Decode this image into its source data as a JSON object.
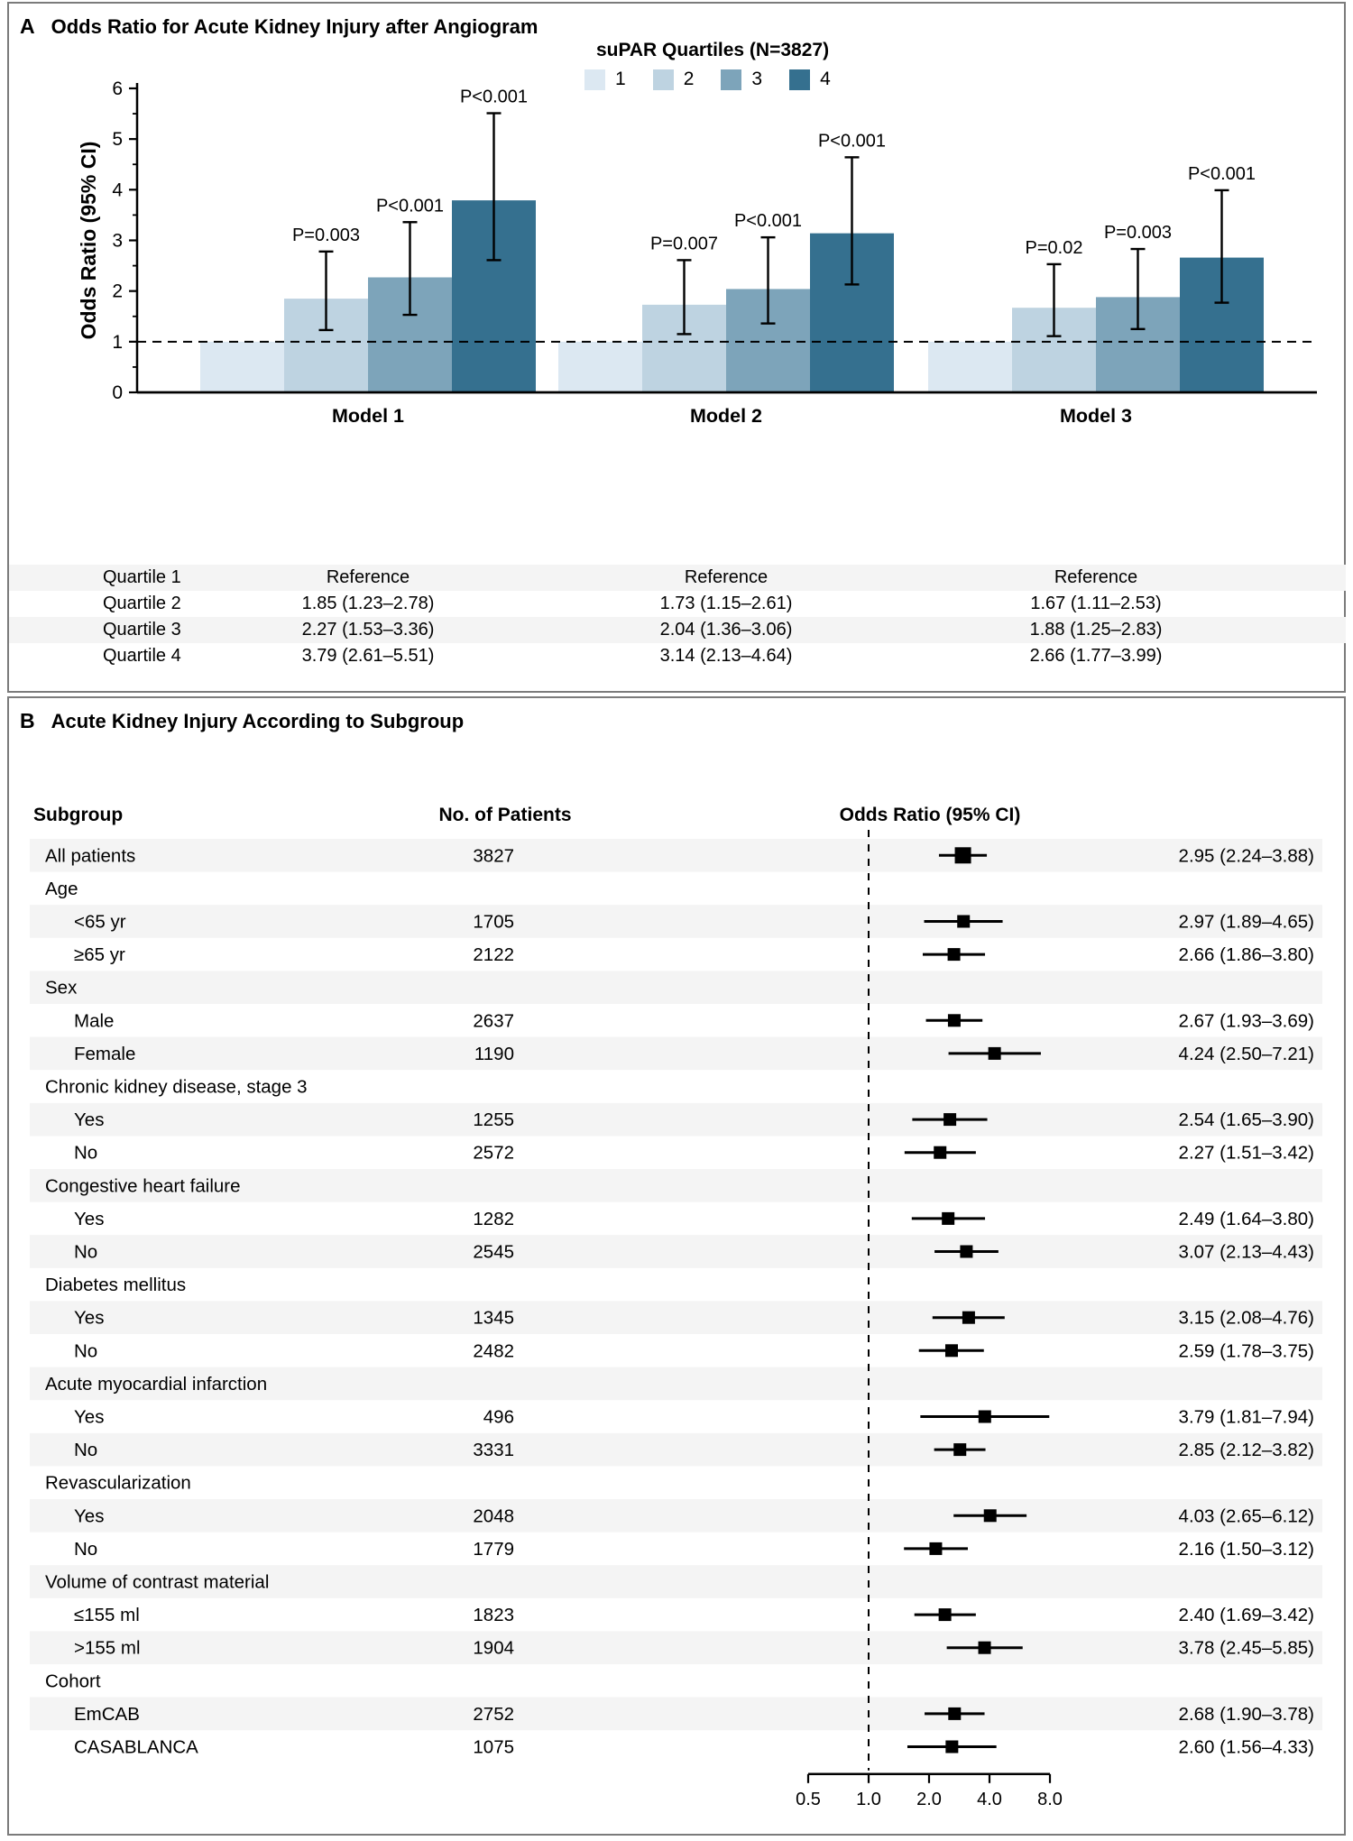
{
  "panel_a": {
    "letter": "A",
    "title": "Odds Ratio for Acute Kidney Injury after Angiogram",
    "legend": {
      "title": "suPAR Quartiles (N=3827)",
      "items": [
        {
          "label": "1",
          "color": "#dce8f2"
        },
        {
          "label": "2",
          "color": "#bed3e1"
        },
        {
          "label": "3",
          "color": "#7da4ba"
        },
        {
          "label": "4",
          "color": "#35708f"
        }
      ]
    },
    "chart_data": {
      "type": "bar",
      "title": "Odds Ratio for Acute Kidney Injury after Angiogram",
      "ylabel": "Odds Ratio (95% CI)",
      "ylim": [
        0,
        6
      ],
      "yticks": [
        0,
        1,
        2,
        3,
        4,
        5,
        6
      ],
      "reference_line": 1.0,
      "grid": false,
      "categories": [
        "Model 1",
        "Model 2",
        "Model 3"
      ],
      "series": [
        {
          "name": "1",
          "color": "#dce8f2",
          "values": [
            1.0,
            1.0,
            1.0
          ]
        },
        {
          "name": "2",
          "color": "#bed3e1",
          "values": [
            1.85,
            1.73,
            1.67
          ],
          "ci_low": [
            1.23,
            1.15,
            1.11
          ],
          "ci_high": [
            2.78,
            2.61,
            2.53
          ],
          "p_labels": [
            "P=0.003",
            "P=0.007",
            "P=0.02"
          ]
        },
        {
          "name": "3",
          "color": "#7da4ba",
          "values": [
            2.27,
            2.04,
            1.88
          ],
          "ci_low": [
            1.53,
            1.36,
            1.25
          ],
          "ci_high": [
            3.36,
            3.06,
            2.83
          ],
          "p_labels": [
            "P<0.001",
            "P<0.001",
            "P=0.003"
          ]
        },
        {
          "name": "4",
          "color": "#35708f",
          "values": [
            3.79,
            3.14,
            2.66
          ],
          "ci_low": [
            2.61,
            2.13,
            1.77
          ],
          "ci_high": [
            5.51,
            4.64,
            3.99
          ],
          "p_labels": [
            "P<0.001",
            "P<0.001",
            "P<0.001"
          ]
        }
      ]
    },
    "table": {
      "row_labels": [
        "Quartile 1",
        "Quartile 2",
        "Quartile 3",
        "Quartile 4"
      ],
      "values": [
        [
          "Reference",
          "Reference",
          "Reference"
        ],
        [
          "1.85 (1.23–2.78)",
          "1.73 (1.15–2.61)",
          "1.67 (1.11–2.53)"
        ],
        [
          "2.27 (1.53–3.36)",
          "2.04 (1.36–3.06)",
          "1.88 (1.25–2.83)"
        ],
        [
          "3.79 (2.61–5.51)",
          "3.14 (2.13–4.64)",
          "2.66 (1.77–3.99)"
        ]
      ],
      "shaded_rows": [
        0,
        2
      ]
    }
  },
  "panel_b": {
    "letter": "B",
    "title": "Acute Kidney Injury According to Subgroup",
    "column_headers": {
      "subgroup": "Subgroup",
      "patients": "No. of Patients",
      "odds_ratio": "Odds Ratio (95% CI)"
    },
    "chart_data": {
      "type": "forest",
      "x_axis": {
        "scale": "log2",
        "reference": 1.0,
        "ticks": [
          0.5,
          1.0,
          2.0,
          4.0,
          8.0
        ],
        "tick_labels": [
          "0.5",
          "1.0",
          "2.0",
          "4.0",
          "8.0"
        ]
      },
      "rows": [
        {
          "label": "All patients",
          "indent": 0,
          "n": "3827",
          "or": 2.95,
          "low": 2.24,
          "high": 3.88,
          "text": "2.95 (2.24–3.88)",
          "big_marker": true,
          "shaded": true
        },
        {
          "label": "Age",
          "indent": 0,
          "header": true,
          "shaded": false
        },
        {
          "label": "<65 yr",
          "indent": 1,
          "n": "1705",
          "or": 2.97,
          "low": 1.89,
          "high": 4.65,
          "text": "2.97 (1.89–4.65)",
          "shaded": true
        },
        {
          "label": "≥65 yr",
          "indent": 1,
          "n": "2122",
          "or": 2.66,
          "low": 1.86,
          "high": 3.8,
          "text": "2.66 (1.86–3.80)",
          "shaded": false
        },
        {
          "label": "Sex",
          "indent": 0,
          "header": true,
          "shaded": true
        },
        {
          "label": "Male",
          "indent": 1,
          "n": "2637",
          "or": 2.67,
          "low": 1.93,
          "high": 3.69,
          "text": "2.67 (1.93–3.69)",
          "shaded": false
        },
        {
          "label": "Female",
          "indent": 1,
          "n": "1190",
          "or": 4.24,
          "low": 2.5,
          "high": 7.21,
          "text": "4.24 (2.50–7.21)",
          "shaded": true
        },
        {
          "label": "Chronic kidney disease, stage 3",
          "indent": 0,
          "header": true,
          "shaded": false
        },
        {
          "label": "Yes",
          "indent": 1,
          "n": "1255",
          "or": 2.54,
          "low": 1.65,
          "high": 3.9,
          "text": "2.54 (1.65–3.90)",
          "shaded": true
        },
        {
          "label": "No",
          "indent": 1,
          "n": "2572",
          "or": 2.27,
          "low": 1.51,
          "high": 3.42,
          "text": "2.27 (1.51–3.42)",
          "shaded": false
        },
        {
          "label": "Congestive heart failure",
          "indent": 0,
          "header": true,
          "shaded": true
        },
        {
          "label": "Yes",
          "indent": 1,
          "n": "1282",
          "or": 2.49,
          "low": 1.64,
          "high": 3.8,
          "text": "2.49 (1.64–3.80)",
          "shaded": false
        },
        {
          "label": "No",
          "indent": 1,
          "n": "2545",
          "or": 3.07,
          "low": 2.13,
          "high": 4.43,
          "text": "3.07 (2.13–4.43)",
          "shaded": true
        },
        {
          "label": "Diabetes mellitus",
          "indent": 0,
          "header": true,
          "shaded": false
        },
        {
          "label": "Yes",
          "indent": 1,
          "n": "1345",
          "or": 3.15,
          "low": 2.08,
          "high": 4.76,
          "text": "3.15 (2.08–4.76)",
          "shaded": true
        },
        {
          "label": "No",
          "indent": 1,
          "n": "2482",
          "or": 2.59,
          "low": 1.78,
          "high": 3.75,
          "text": "2.59 (1.78–3.75)",
          "shaded": false
        },
        {
          "label": "Acute myocardial infarction",
          "indent": 0,
          "header": true,
          "shaded": true
        },
        {
          "label": "Yes",
          "indent": 1,
          "n": "496",
          "or": 3.79,
          "low": 1.81,
          "high": 7.94,
          "text": "3.79 (1.81–7.94)",
          "shaded": false
        },
        {
          "label": "No",
          "indent": 1,
          "n": "3331",
          "or": 2.85,
          "low": 2.12,
          "high": 3.82,
          "text": "2.85 (2.12–3.82)",
          "shaded": true
        },
        {
          "label": "Revascularization",
          "indent": 0,
          "header": true,
          "shaded": false
        },
        {
          "label": "Yes",
          "indent": 1,
          "n": "2048",
          "or": 4.03,
          "low": 2.65,
          "high": 6.12,
          "text": "4.03 (2.65–6.12)",
          "shaded": true
        },
        {
          "label": "No",
          "indent": 1,
          "n": "1779",
          "or": 2.16,
          "low": 1.5,
          "high": 3.12,
          "text": "2.16 (1.50–3.12)",
          "shaded": false
        },
        {
          "label": "Volume of contrast material",
          "indent": 0,
          "header": true,
          "shaded": true
        },
        {
          "label": "≤155 ml",
          "indent": 1,
          "n": "1823",
          "or": 2.4,
          "low": 1.69,
          "high": 3.42,
          "text": "2.40 (1.69–3.42)",
          "shaded": false
        },
        {
          "label": ">155 ml",
          "indent": 1,
          "n": "1904",
          "or": 3.78,
          "low": 2.45,
          "high": 5.85,
          "text": "3.78 (2.45–5.85)",
          "shaded": true
        },
        {
          "label": "Cohort",
          "indent": 0,
          "header": true,
          "shaded": false
        },
        {
          "label": "EmCAB",
          "indent": 1,
          "n": "2752",
          "or": 2.68,
          "low": 1.9,
          "high": 3.78,
          "text": "2.68 (1.90–3.78)",
          "shaded": true
        },
        {
          "label": "CASABLANCA",
          "indent": 1,
          "n": "1075",
          "or": 2.6,
          "low": 1.56,
          "high": 4.33,
          "text": "2.60 (1.56–4.33)",
          "shaded": false
        }
      ]
    },
    "colors": {
      "stripe": "#f4f4f4",
      "marker": "#000000"
    }
  }
}
